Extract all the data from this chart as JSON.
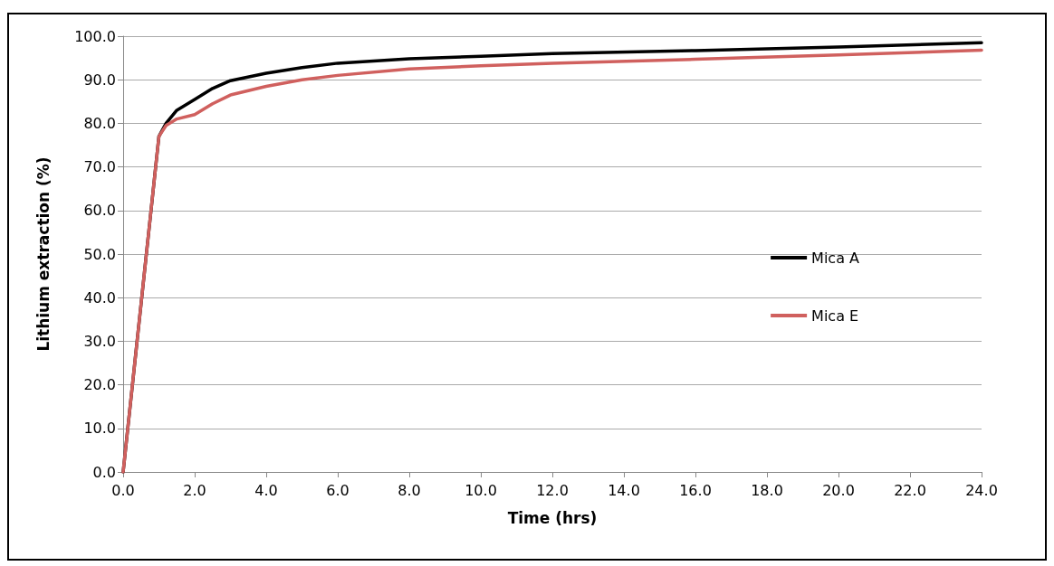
{
  "chart_data": {
    "type": "line",
    "xlabel": "Time (hrs)",
    "ylabel": "Lithium extraction (%)",
    "xlim": [
      0,
      24
    ],
    "xticks": [
      {
        "value": 0,
        "label": "0.0"
      },
      {
        "value": 2,
        "label": "2.0"
      },
      {
        "value": 4,
        "label": "4.0"
      },
      {
        "value": 6,
        "label": "6.0"
      },
      {
        "value": 8,
        "label": "8.0"
      },
      {
        "value": 10,
        "label": "10.0"
      },
      {
        "value": 12,
        "label": "12.0"
      },
      {
        "value": 14,
        "label": "14.0"
      },
      {
        "value": 16,
        "label": "16.0"
      },
      {
        "value": 18,
        "label": "18.0"
      },
      {
        "value": 20,
        "label": "20.0"
      },
      {
        "value": 22,
        "label": "22.0"
      },
      {
        "value": 24,
        "label": "24.0"
      }
    ],
    "ylim": [
      0,
      100
    ],
    "yticks": [
      {
        "value": 0,
        "label": "0.0"
      },
      {
        "value": 10,
        "label": "10.0"
      },
      {
        "value": 20,
        "label": "20.0"
      },
      {
        "value": 30,
        "label": "30.0"
      },
      {
        "value": 40,
        "label": "40.0"
      },
      {
        "value": 50,
        "label": "50.0"
      },
      {
        "value": 60,
        "label": "60.0"
      },
      {
        "value": 70,
        "label": "70.0"
      },
      {
        "value": 80,
        "label": "80.0"
      },
      {
        "value": 90,
        "label": "90.0"
      },
      {
        "value": 100,
        "label": "100.0"
      }
    ],
    "grid": "y",
    "legend": "right",
    "marker": "none",
    "line_style": "solid",
    "series": [
      {
        "name": "Mica A",
        "color": "#000000",
        "x": [
          0,
          1,
          1.2,
          1.5,
          2,
          2.5,
          3,
          4,
          5,
          6,
          8,
          10,
          12,
          16,
          20,
          24
        ],
        "values": [
          0,
          77,
          80,
          83,
          85.5,
          88,
          89.8,
          91.5,
          92.8,
          93.8,
          94.8,
          95.4,
          96,
          96.7,
          97.5,
          98.5
        ]
      },
      {
        "name": "Mica E",
        "color": "#d0605e",
        "x": [
          0,
          1,
          1.2,
          1.5,
          2,
          2.5,
          3,
          4,
          5,
          6,
          8,
          10,
          12,
          16,
          20,
          24
        ],
        "values": [
          0,
          77,
          79.5,
          81,
          82,
          84.5,
          86.5,
          88.5,
          90,
          91,
          92.5,
          93.2,
          93.8,
          94.7,
          95.7,
          96.8
        ]
      }
    ]
  }
}
